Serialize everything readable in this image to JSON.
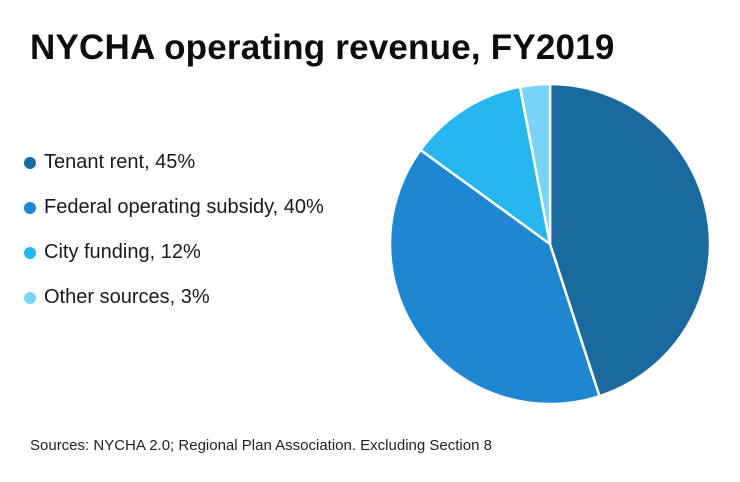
{
  "title": "NYCHA operating revenue, FY2019",
  "source": "Sources: NYCHA 2.0; Regional Plan Association. Excluding Section 8",
  "chart_data": {
    "type": "pie",
    "title": "NYCHA operating revenue, FY2019",
    "unit": "%",
    "legend_position": "left",
    "slices": [
      {
        "label": "Tenant rent",
        "value": 45,
        "legend": "Tenant rent, 45%",
        "color": "#1a6aa0"
      },
      {
        "label": "Federal operating subsidy",
        "value": 40,
        "legend": "Federal operating subsidy, 40%",
        "color": "#1f86d1"
      },
      {
        "label": "City funding",
        "value": 12,
        "legend": "City funding, 12%",
        "color": "#28b6ee"
      },
      {
        "label": "Other sources",
        "value": 3,
        "legend": "Other sources, 3%",
        "color": "#79d4f7"
      }
    ]
  }
}
